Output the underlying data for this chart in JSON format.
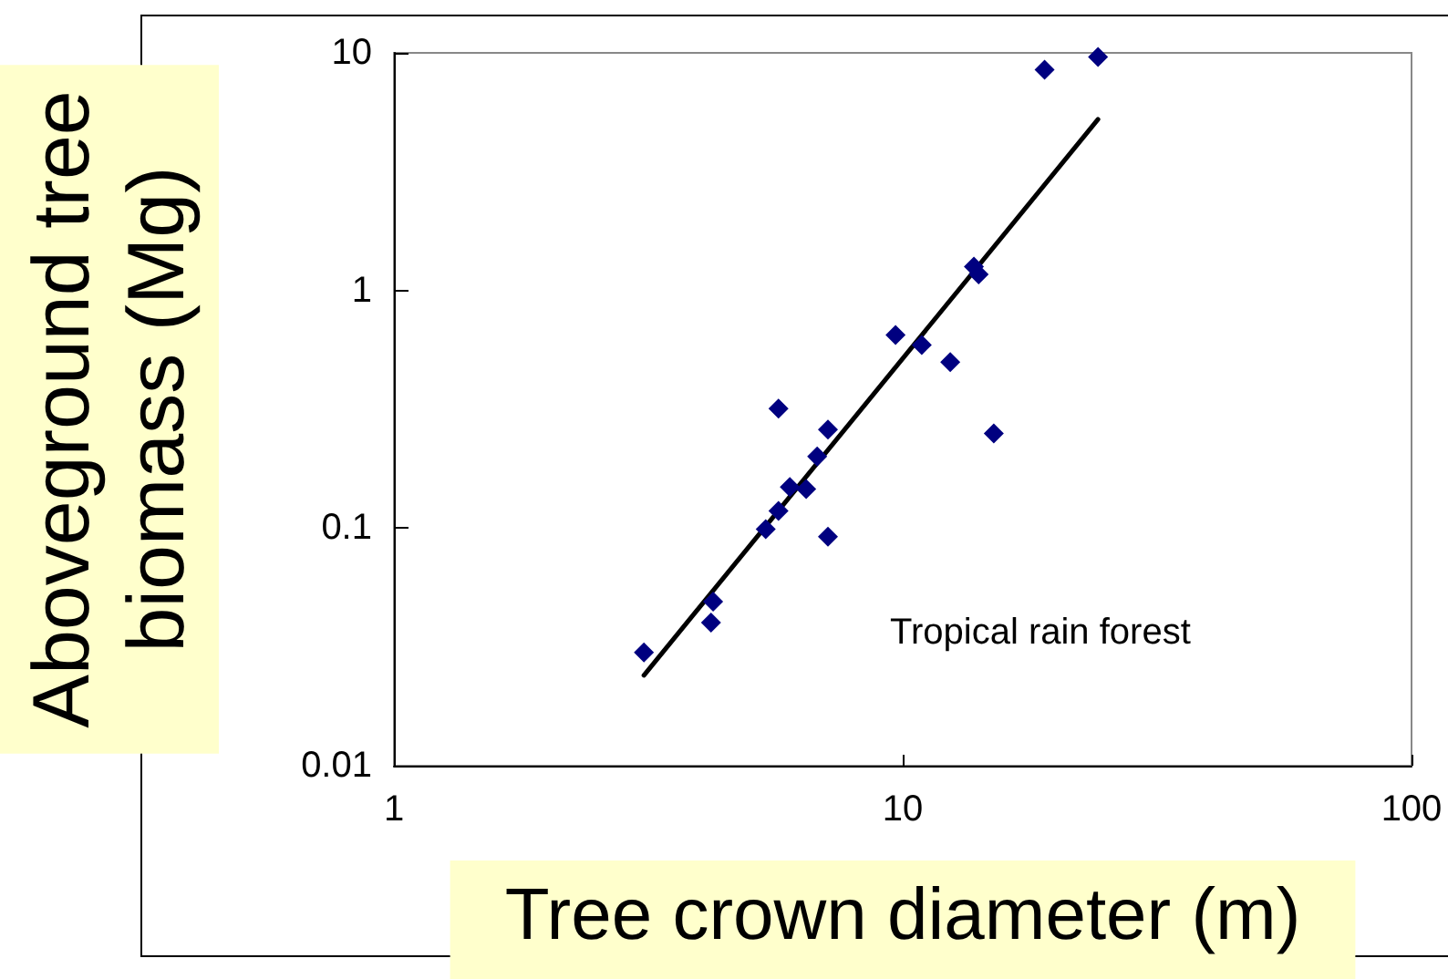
{
  "chart_data": {
    "type": "scatter",
    "xlabel": "Tree crown diameter (m)",
    "ylabel": "Aboveground tree biomass (Mg)",
    "annotations": [
      "Tropical rain forest"
    ],
    "log": "xy",
    "xlim": [
      1,
      100
    ],
    "xticks": [
      1,
      10,
      100
    ],
    "ylim": [
      0.01,
      10
    ],
    "yticks": [
      0.01,
      0.1,
      1,
      10
    ],
    "grid": false,
    "series": [
      {
        "color": "#000080",
        "marker": "diamond",
        "x": [
          3.1,
          4.24,
          4.2,
          5.38,
          5.7,
          6.0,
          6.46,
          6.79,
          7.13,
          5.7,
          7.13,
          9.68,
          10.9,
          12.4,
          13.8,
          14.1,
          15.1,
          19.0,
          24.2
        ],
        "values": [
          0.03,
          0.049,
          0.04,
          0.099,
          0.118,
          0.149,
          0.146,
          0.2,
          0.26,
          0.318,
          0.092,
          0.65,
          0.59,
          0.5,
          1.26,
          1.17,
          0.25,
          8.5,
          9.6
        ]
      },
      {
        "type": "line",
        "color": "#000000",
        "marker": "none",
        "line_style": "solid",
        "x": [
          3.1,
          24.2
        ],
        "values": [
          0.024,
          5.25
        ]
      }
    ]
  }
}
